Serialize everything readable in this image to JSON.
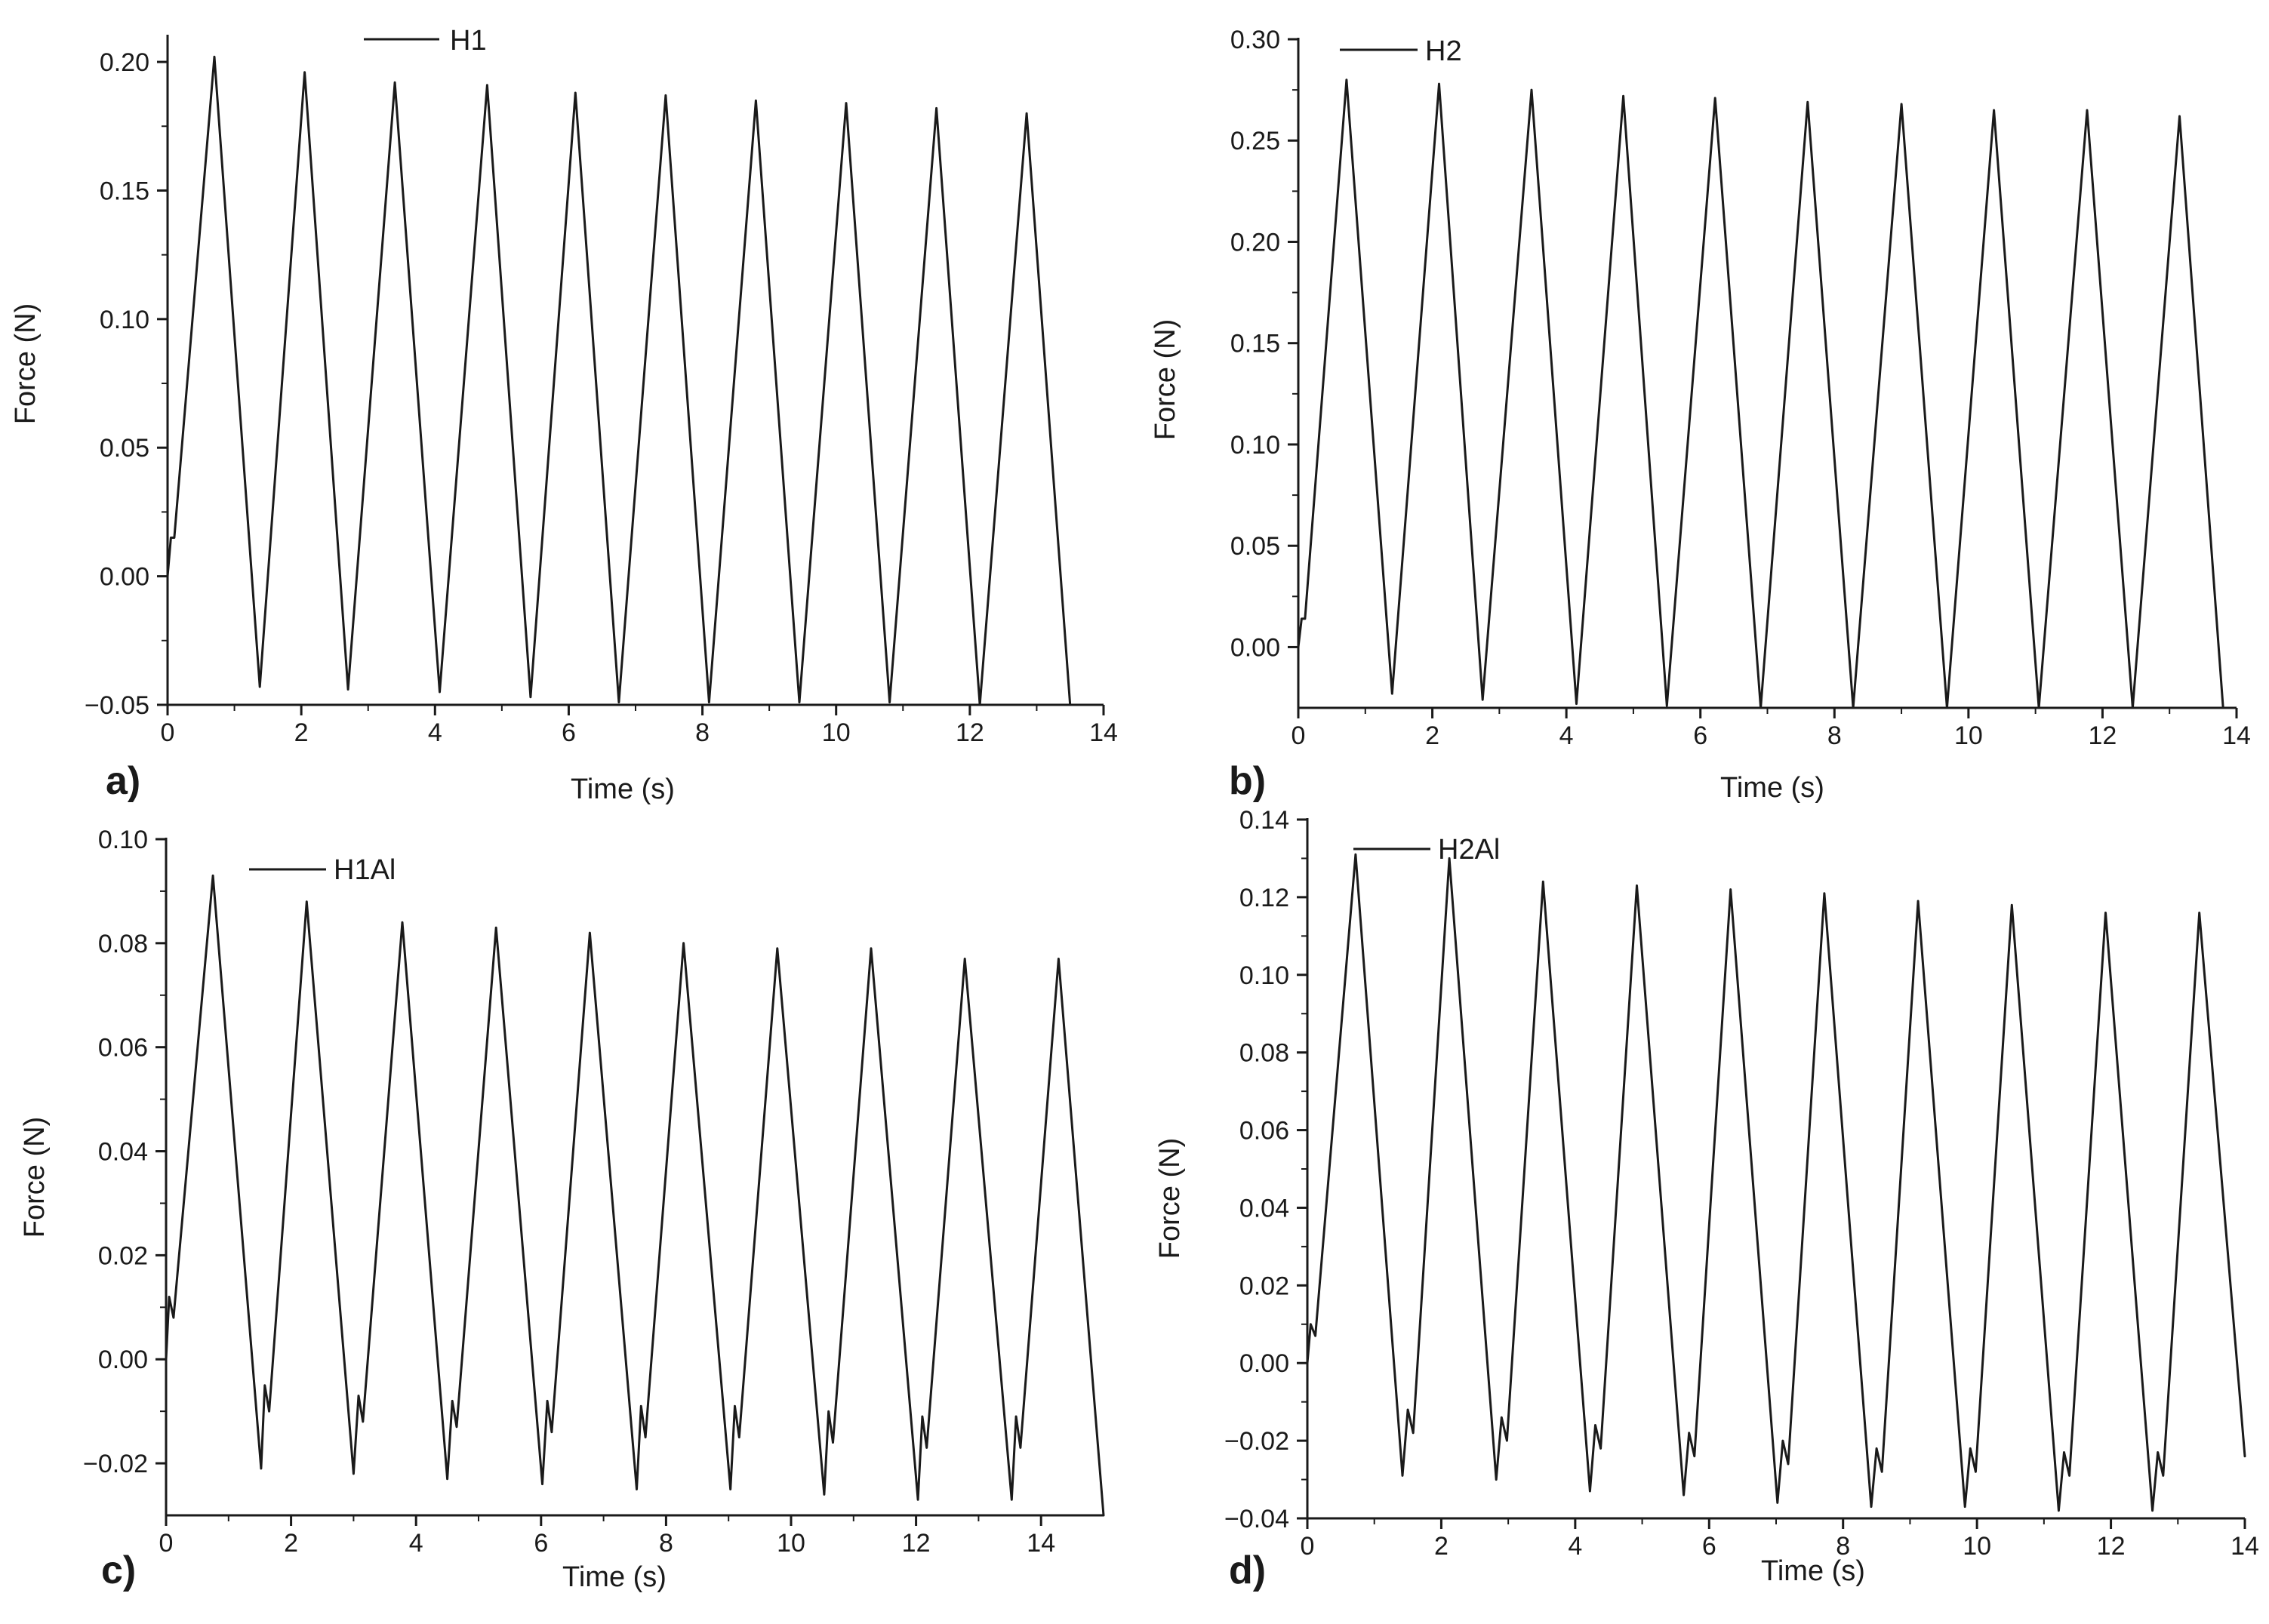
{
  "colors": {
    "line": "#1a1a1a",
    "background": "#ffffff"
  },
  "chart_data": [
    {
      "panel": "a)",
      "type": "line",
      "xlabel": "Time (s)",
      "ylabel": "Force (N)",
      "xlim": [
        0,
        14
      ],
      "ylim": [
        -0.05,
        0.21
      ],
      "x_ticks": [
        0,
        2,
        4,
        6,
        8,
        10,
        12,
        14
      ],
      "x_tick_labels": [
        "0",
        "2",
        "4",
        "6",
        "8",
        "10",
        "12",
        "14"
      ],
      "y_ticks": [
        -0.05,
        0.0,
        0.05,
        0.1,
        0.15,
        0.2
      ],
      "y_tick_labels": [
        "−0.05",
        "0.00",
        "0.05",
        "0.10",
        "0.15",
        "0.20"
      ],
      "legend_position": "top-center",
      "series": [
        {
          "name": "H1",
          "x": [
            0.0,
            0.05,
            0.1,
            0.7,
            1.38,
            2.05,
            2.7,
            3.4,
            4.07,
            4.78,
            5.43,
            6.1,
            6.75,
            7.45,
            8.1,
            8.8,
            9.45,
            10.15,
            10.8,
            11.5,
            12.15,
            12.85,
            13.5
          ],
          "y": [
            0.0,
            0.015,
            0.015,
            0.202,
            -0.043,
            0.196,
            -0.044,
            0.192,
            -0.045,
            0.191,
            -0.047,
            0.188,
            -0.049,
            0.187,
            -0.049,
            0.185,
            -0.049,
            0.184,
            -0.049,
            0.182,
            -0.05,
            0.18,
            -0.05
          ]
        }
      ]
    },
    {
      "panel": "b)",
      "type": "line",
      "xlabel": "Time (s)",
      "ylabel": "Force (N)",
      "xlim": [
        0,
        14
      ],
      "ylim": [
        -0.03,
        0.3
      ],
      "x_ticks": [
        0,
        2,
        4,
        6,
        8,
        10,
        12,
        14
      ],
      "x_tick_labels": [
        "0",
        "2",
        "4",
        "6",
        "8",
        "10",
        "12",
        "14"
      ],
      "y_ticks": [
        0.0,
        0.05,
        0.1,
        0.15,
        0.2,
        0.25,
        0.3
      ],
      "y_tick_labels": [
        "0.00",
        "0.05",
        "0.10",
        "0.15",
        "0.20",
        "0.25",
        "0.30"
      ],
      "legend_position": "top-left",
      "series": [
        {
          "name": "H2",
          "x": [
            0.0,
            0.05,
            0.1,
            0.72,
            1.4,
            2.1,
            2.75,
            3.48,
            4.15,
            4.85,
            5.5,
            6.22,
            6.9,
            7.6,
            8.28,
            9.0,
            9.68,
            10.38,
            11.05,
            11.77,
            12.45,
            13.15,
            13.8
          ],
          "y": [
            0.0,
            0.014,
            0.014,
            0.28,
            -0.023,
            0.278,
            -0.026,
            0.275,
            -0.028,
            0.272,
            -0.029,
            0.271,
            -0.03,
            0.269,
            -0.03,
            0.268,
            -0.03,
            0.265,
            -0.03,
            0.265,
            -0.03,
            0.262,
            -0.03
          ]
        }
      ]
    },
    {
      "panel": "c)",
      "type": "line",
      "xlabel": "Time (s)",
      "ylabel": "Force (N)",
      "xlim": [
        0,
        15
      ],
      "ylim": [
        -0.03,
        0.1
      ],
      "x_ticks": [
        0,
        2,
        4,
        6,
        8,
        10,
        12,
        14
      ],
      "x_tick_labels": [
        "0",
        "2",
        "4",
        "6",
        "8",
        "10",
        "12",
        "14"
      ],
      "y_ticks": [
        -0.02,
        0.0,
        0.02,
        0.04,
        0.06,
        0.08,
        0.1
      ],
      "y_tick_labels": [
        "−0.02",
        "0.00",
        "0.02",
        "0.04",
        "0.06",
        "0.08",
        "0.10"
      ],
      "legend_position": "top-left",
      "series": [
        {
          "name": "H1Al",
          "x": [
            0.0,
            0.05,
            0.12,
            0.75,
            1.52,
            1.58,
            1.65,
            2.25,
            3.0,
            3.08,
            3.15,
            3.78,
            4.5,
            4.58,
            4.65,
            5.28,
            6.02,
            6.1,
            6.17,
            6.78,
            7.53,
            7.6,
            7.67,
            8.28,
            9.03,
            9.1,
            9.17,
            9.78,
            10.53,
            10.6,
            10.67,
            11.28,
            12.03,
            12.1,
            12.17,
            12.78,
            13.53,
            13.6,
            13.67,
            14.28,
            15.0
          ],
          "y": [
            0.0,
            0.012,
            0.008,
            0.093,
            -0.021,
            -0.005,
            -0.01,
            0.088,
            -0.022,
            -0.007,
            -0.012,
            0.084,
            -0.023,
            -0.008,
            -0.013,
            0.083,
            -0.024,
            -0.008,
            -0.014,
            0.082,
            -0.025,
            -0.009,
            -0.015,
            0.08,
            -0.025,
            -0.009,
            -0.015,
            0.079,
            -0.026,
            -0.01,
            -0.016,
            0.079,
            -0.027,
            -0.011,
            -0.017,
            0.077,
            -0.027,
            -0.011,
            -0.017,
            0.077,
            -0.03
          ]
        }
      ]
    },
    {
      "panel": "d)",
      "type": "line",
      "xlabel": "Time (s)",
      "ylabel": "Force (N)",
      "xlim": [
        0,
        14
      ],
      "ylim": [
        -0.04,
        0.14
      ],
      "x_ticks": [
        0,
        2,
        4,
        6,
        8,
        10,
        12,
        14
      ],
      "x_tick_labels": [
        "0",
        "2",
        "4",
        "6",
        "8",
        "10",
        "12",
        "14"
      ],
      "y_ticks": [
        -0.04,
        -0.02,
        0.0,
        0.02,
        0.04,
        0.06,
        0.08,
        0.1,
        0.12,
        0.14
      ],
      "y_tick_labels": [
        "−0.04",
        "−0.02",
        "0.00",
        "0.02",
        "0.04",
        "0.06",
        "0.08",
        "0.10",
        "0.12",
        "0.14"
      ],
      "legend_position": "top-left",
      "series": [
        {
          "name": "H2Al",
          "x": [
            0.0,
            0.05,
            0.12,
            0.72,
            1.42,
            1.5,
            1.58,
            2.12,
            2.82,
            2.9,
            2.98,
            3.52,
            4.22,
            4.3,
            4.38,
            4.92,
            5.62,
            5.7,
            5.78,
            6.32,
            7.02,
            7.1,
            7.18,
            7.72,
            8.42,
            8.5,
            8.58,
            9.12,
            9.82,
            9.9,
            9.98,
            10.52,
            11.22,
            11.3,
            11.38,
            11.92,
            12.62,
            12.7,
            12.78,
            13.32,
            14.0
          ],
          "y": [
            0.0,
            0.01,
            0.007,
            0.131,
            -0.029,
            -0.012,
            -0.018,
            0.13,
            -0.03,
            -0.014,
            -0.02,
            0.124,
            -0.033,
            -0.016,
            -0.022,
            0.123,
            -0.034,
            -0.018,
            -0.024,
            0.122,
            -0.036,
            -0.02,
            -0.026,
            0.121,
            -0.037,
            -0.022,
            -0.028,
            0.119,
            -0.037,
            -0.022,
            -0.028,
            0.118,
            -0.038,
            -0.023,
            -0.029,
            0.116,
            -0.038,
            -0.023,
            -0.029,
            0.116,
            -0.024
          ]
        }
      ]
    }
  ]
}
